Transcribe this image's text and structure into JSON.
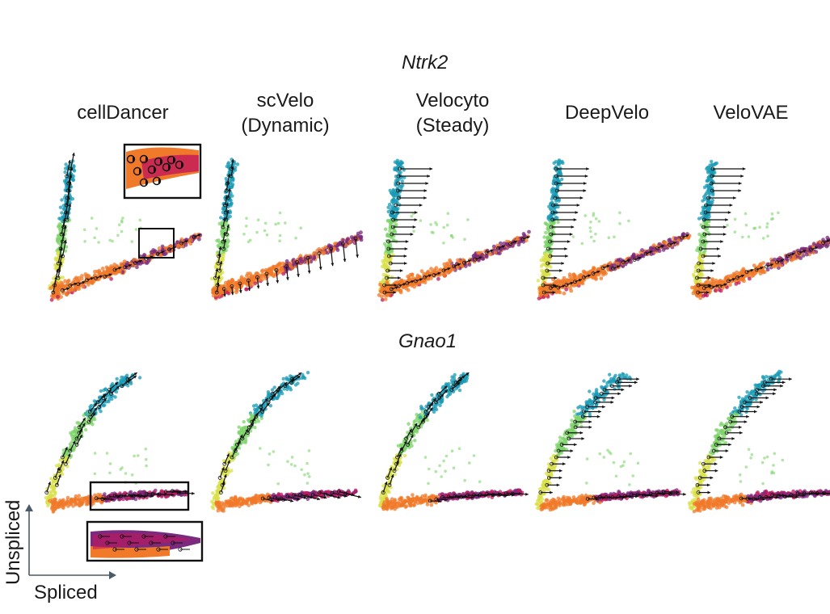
{
  "figure": {
    "genes": [
      "Ntrk2",
      "Gnao1"
    ],
    "methods": [
      {
        "line1": "cellDancer",
        "line2": ""
      },
      {
        "line1": "scVelo",
        "line2": "(Dynamic)"
      },
      {
        "line1": "Velocyto",
        "line2": "(Steady)"
      },
      {
        "line1": "DeepVelo",
        "line2": ""
      },
      {
        "line1": "VeloVAE",
        "line2": ""
      }
    ],
    "axes": {
      "x_label": "Spliced",
      "y_label": "Unspliced"
    },
    "colors": {
      "branch_top": "#1a9bb5",
      "branch_mid": "#7ed36a",
      "branch_low": "#d9e04a",
      "base_orange": "#f07a2a",
      "purple": "#7b2a7e",
      "magenta": "#c2185b",
      "arrow": "#111111"
    }
  },
  "chart_data": [
    {
      "type": "scatter",
      "title": "Ntrk2",
      "panels": [
        "cellDancer",
        "scVelo (Dynamic)",
        "Velocyto (Steady)",
        "DeepVelo",
        "VeloVAE"
      ],
      "xlabel": "Spliced",
      "ylabel": "Unspliced",
      "shape": "L-shaped: vertical cyan/green branch at low spliced, horizontal orange/purple branch at low unspliced",
      "velocity_arrows": true,
      "inset_zoom": "cellDancer panel"
    },
    {
      "type": "scatter",
      "title": "Gnao1",
      "panels": [
        "cellDancer",
        "scVelo (Dynamic)",
        "Velocyto (Steady)",
        "DeepVelo",
        "VeloVAE"
      ],
      "xlabel": "Spliced",
      "ylabel": "Unspliced",
      "shape": "V-shaped: diagonal cyan/green branch and horizontal orange/purple branch",
      "velocity_arrows": true,
      "inset_zoom": "cellDancer panel"
    }
  ]
}
